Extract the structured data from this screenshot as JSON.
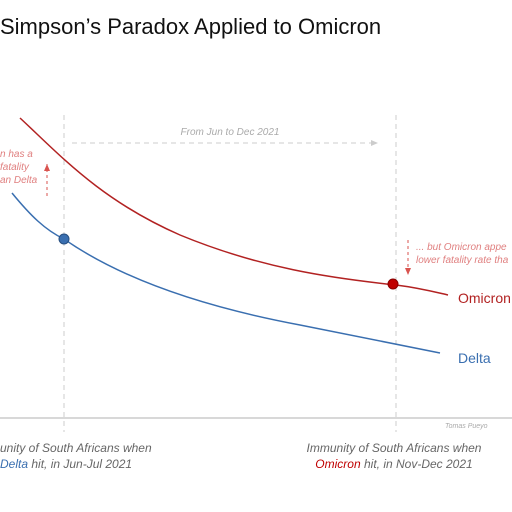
{
  "header": {
    "title": "Simpson’s Paradox Applied to Omicron"
  },
  "annotations": {
    "period": "From Jun to Dec 2021",
    "left_note": [
      "n has a",
      "fatality",
      "an Delta"
    ],
    "right_note": [
      "... but Omicron appe",
      "lower fatality rate tha"
    ],
    "credit": "Tomas Pueyo"
  },
  "curves": {
    "omicron": "Omicron",
    "delta": "Delta"
  },
  "x_labels": {
    "left": {
      "line1": "unity of South Africans when",
      "variant": "Delta",
      "rest": " hit, in Jun-Jul 2021"
    },
    "right": {
      "line1": "Immunity of South Africans when",
      "variant": "Omicron",
      "rest": " hit, in Nov-Dec 2021"
    }
  }
}
